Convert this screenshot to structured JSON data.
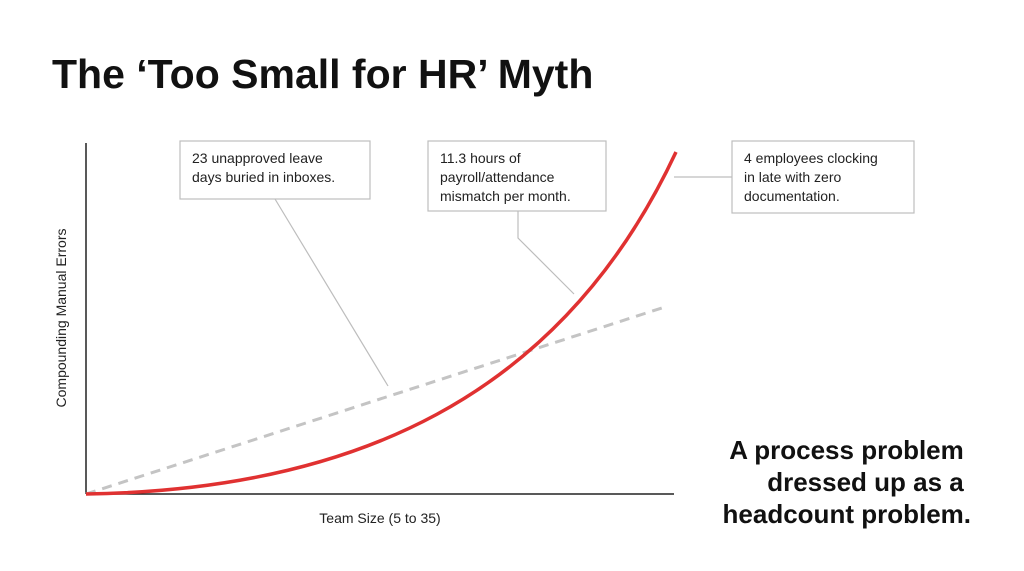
{
  "title": "The ‘Too Small for HR’ Myth",
  "chart": {
    "y_label": "Compounding Manual Errors",
    "x_label": "Team Size (5 to 35)"
  },
  "annotations": [
    [
      "23 unapproved leave",
      "days buried in inboxes."
    ],
    [
      "11.3 hours of",
      "payroll/attendance",
      "mismatch per month."
    ],
    [
      "4 employees clocking",
      "in late with zero",
      "documentation."
    ]
  ],
  "takeaway": [
    "A process problem",
    "dressed up as a",
    "headcount problem."
  ]
}
